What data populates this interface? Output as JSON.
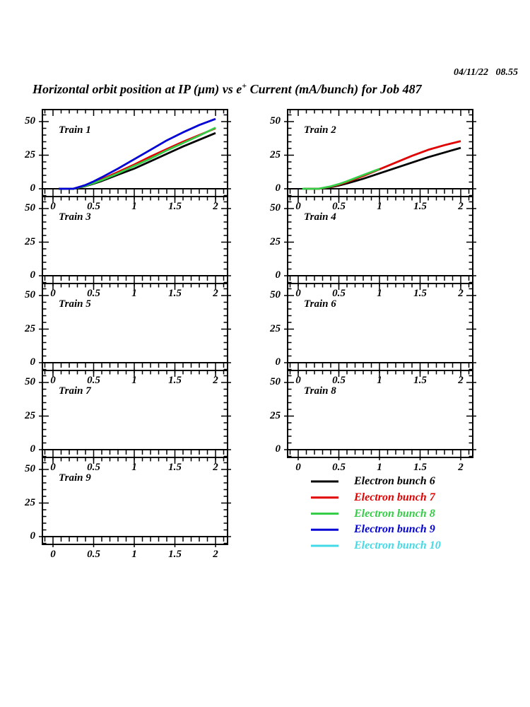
{
  "header": {
    "timestamp": "04/11/22   08.55",
    "title_part1": "Horizontal orbit position at IP (µm) vs e",
    "title_sup": "+",
    "title_part2": " Current (mA/bunch) for Job 487"
  },
  "chart_data": {
    "type": "line",
    "title": "Horizontal orbit position at IP (µm) vs e+ Current (mA/bunch) for Job 487",
    "grid": false,
    "x_ticks": [
      0,
      0.5,
      1,
      1.5,
      2
    ],
    "x_tick_labels": [
      "0",
      "0.5",
      "1",
      "1.5",
      "2"
    ],
    "y_ticks": [
      0,
      25,
      50
    ],
    "y_tick_labels": [
      "0",
      "25",
      "50"
    ],
    "x_minor_step": 0.1,
    "y_minor_step": 5,
    "xlim": [
      -0.13,
      2.14
    ],
    "ylim": [
      -5.8,
      58.9
    ],
    "layout": "5 rows x 2 columns of panels, legend in bottom-right zone",
    "panels": [
      {
        "id": "train-1",
        "label": "Train 1",
        "col": 0,
        "row": 0,
        "series": [
          {
            "name": "Electron bunch 6",
            "color": "#000000",
            "points": [
              [
                0.07,
                0
              ],
              [
                0.25,
                0
              ],
              [
                0.4,
                2
              ],
              [
                0.5,
                3.8
              ],
              [
                0.6,
                5.8
              ],
              [
                0.8,
                10.5
              ],
              [
                1.0,
                15
              ],
              [
                1.2,
                20.5
              ],
              [
                1.4,
                26
              ],
              [
                1.6,
                31.5
              ],
              [
                1.8,
                36.5
              ],
              [
                2.0,
                41.5
              ]
            ]
          },
          {
            "name": "Electron bunch 7",
            "color": "#e00000",
            "points": [
              [
                0.07,
                0
              ],
              [
                0.25,
                0
              ],
              [
                0.4,
                2.4
              ],
              [
                0.5,
                4.6
              ],
              [
                0.6,
                7
              ],
              [
                0.8,
                12.5
              ],
              [
                1.0,
                18
              ],
              [
                1.2,
                24
              ],
              [
                1.4,
                29.5
              ],
              [
                1.6,
                35
              ],
              [
                1.8,
                40
              ],
              [
                2.0,
                45
              ]
            ]
          },
          {
            "name": "Electron bunch 8",
            "color": "#35cc47",
            "points": [
              [
                0.07,
                0
              ],
              [
                0.25,
                0
              ],
              [
                0.4,
                2.2
              ],
              [
                0.5,
                4.2
              ],
              [
                0.6,
                6.4
              ],
              [
                0.8,
                11.5
              ],
              [
                1.0,
                17
              ],
              [
                1.2,
                22.5
              ],
              [
                1.4,
                28.5
              ],
              [
                1.6,
                34
              ],
              [
                1.8,
                39.5
              ],
              [
                2.0,
                45.5
              ]
            ]
          },
          {
            "name": "Electron bunch 9",
            "color": "#0000d5",
            "points": [
              [
                0.07,
                0
              ],
              [
                0.25,
                0
              ],
              [
                0.4,
                2.8
              ],
              [
                0.5,
                5.5
              ],
              [
                0.6,
                8.5
              ],
              [
                0.8,
                15
              ],
              [
                1.0,
                22
              ],
              [
                1.2,
                29
              ],
              [
                1.4,
                36
              ],
              [
                1.6,
                42
              ],
              [
                1.8,
                47.5
              ],
              [
                2.0,
                52
              ]
            ]
          }
        ]
      },
      {
        "id": "train-2",
        "label": "Train 2",
        "col": 1,
        "row": 0,
        "series": [
          {
            "name": "Electron bunch 6",
            "color": "#000000",
            "points": [
              [
                0.07,
                0
              ],
              [
                0.25,
                0
              ],
              [
                0.4,
                1.2
              ],
              [
                0.5,
                2.4
              ],
              [
                0.6,
                4
              ],
              [
                0.8,
                7.5
              ],
              [
                1.0,
                11.5
              ],
              [
                1.2,
                15.5
              ],
              [
                1.4,
                19.5
              ],
              [
                1.6,
                23.5
              ],
              [
                1.8,
                27
              ],
              [
                2.0,
                30.5
              ]
            ]
          },
          {
            "name": "Electron bunch 7",
            "color": "#e00000",
            "points": [
              [
                0.07,
                0
              ],
              [
                0.25,
                0
              ],
              [
                0.4,
                1.5
              ],
              [
                0.5,
                3
              ],
              [
                0.6,
                5
              ],
              [
                0.8,
                9.5
              ],
              [
                1.0,
                14.5
              ],
              [
                1.2,
                19.5
              ],
              [
                1.4,
                24.5
              ],
              [
                1.6,
                29
              ],
              [
                1.8,
                32.5
              ],
              [
                2.0,
                35.5
              ]
            ]
          },
          {
            "name": "Electron bunch 8",
            "color": "#35cc47",
            "points": [
              [
                0.05,
                0
              ],
              [
                0.25,
                0
              ],
              [
                0.4,
                1.8
              ],
              [
                0.5,
                3.5
              ],
              [
                0.6,
                5.6
              ],
              [
                0.8,
                10.2
              ],
              [
                1.0,
                14.8
              ]
            ]
          }
        ]
      },
      {
        "id": "train-3",
        "label": "Train 3",
        "col": 0,
        "row": 1,
        "series": []
      },
      {
        "id": "train-4",
        "label": "Train 4",
        "col": 1,
        "row": 1,
        "series": []
      },
      {
        "id": "train-5",
        "label": "Train 5",
        "col": 0,
        "row": 2,
        "series": []
      },
      {
        "id": "train-6",
        "label": "Train 6",
        "col": 1,
        "row": 2,
        "series": []
      },
      {
        "id": "train-7",
        "label": "Train 7",
        "col": 0,
        "row": 3,
        "series": []
      },
      {
        "id": "train-8",
        "label": "Train 8",
        "col": 1,
        "row": 3,
        "series": []
      },
      {
        "id": "train-9",
        "label": "Train 9",
        "col": 0,
        "row": 4,
        "series": []
      }
    ],
    "legend": {
      "position": "bottom-right-zone",
      "entries": [
        {
          "label": "Electron bunch 6",
          "color": "#000000"
        },
        {
          "label": "Electron bunch 7",
          "color": "#e00000"
        },
        {
          "label": "Electron bunch 8",
          "color": "#35cc47"
        },
        {
          "label": "Electron bunch 9",
          "color": "#0000d5"
        },
        {
          "label": "Electron bunch 10",
          "color": "#44d9e6"
        }
      ]
    }
  }
}
